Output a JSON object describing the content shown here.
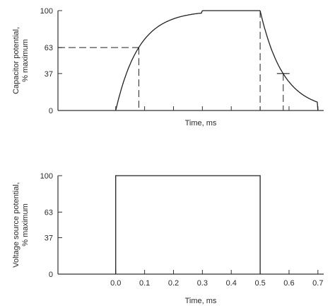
{
  "chart_data": [
    {
      "type": "line",
      "id": "capacitor-chart",
      "title": "",
      "xlabel": "Time, ms",
      "ylabel_lines": [
        "Capacitor potential,",
        "% maximum"
      ],
      "xlim": [
        -0.2,
        0.72
      ],
      "ylim": [
        0,
        100
      ],
      "yticks": [
        0,
        37,
        63,
        100
      ],
      "xticks": [
        0.0,
        0.1,
        0.2,
        0.3,
        0.4,
        0.5,
        0.6,
        0.7
      ],
      "show_x_tick_labels": false,
      "tau_ms": 0.08,
      "series": [
        {
          "kind": "charge",
          "x": [
            0.0,
            0.01,
            0.02,
            0.03,
            0.04,
            0.05,
            0.06,
            0.07,
            0.08,
            0.09,
            0.1,
            0.12,
            0.14,
            0.16,
            0.18,
            0.2,
            0.22,
            0.24,
            0.26,
            0.28,
            0.3
          ],
          "y": [
            0,
            11.8,
            22.1,
            31.3,
            39.3,
            46.5,
            52.8,
            58.3,
            63.2,
            67.5,
            71.3,
            77.7,
            82.6,
            86.5,
            89.5,
            91.8,
            93.6,
            95.0,
            96.1,
            97.0,
            100
          ]
        },
        {
          "kind": "plateau",
          "x": [
            0.3,
            0.5
          ],
          "y": [
            100,
            100
          ]
        },
        {
          "kind": "discharge",
          "x": [
            0.5,
            0.51,
            0.52,
            0.53,
            0.54,
            0.55,
            0.56,
            0.57,
            0.58,
            0.59,
            0.6,
            0.62,
            0.64,
            0.66,
            0.68,
            0.7
          ],
          "y": [
            100,
            88.2,
            77.9,
            68.7,
            60.7,
            53.5,
            47.2,
            41.7,
            36.8,
            32.5,
            28.7,
            22.3,
            17.4,
            13.5,
            10.5,
            0
          ]
        }
      ],
      "annotations": [
        {
          "type": "dashed-guide",
          "x": 0.08,
          "y": 63
        },
        {
          "type": "dashed-vertical",
          "x": 0.5,
          "y": 100
        },
        {
          "type": "dashed-guide-marker",
          "x": 0.58,
          "y": 37
        }
      ]
    },
    {
      "type": "line",
      "id": "voltage-source-chart",
      "title": "",
      "xlabel": "Time, ms",
      "ylabel_lines": [
        "Voltage source potential,",
        "% maximum"
      ],
      "xlim": [
        -0.2,
        0.72
      ],
      "ylim": [
        0,
        100
      ],
      "yticks": [
        0,
        37,
        63,
        100
      ],
      "xticks": [
        0.0,
        0.1,
        0.2,
        0.3,
        0.4,
        0.5,
        0.6,
        0.7
      ],
      "xtick_labels": [
        "0.0",
        "0.1",
        "0.2",
        "0.3",
        "0.4",
        "0.5",
        "0.6",
        "0.7"
      ],
      "show_x_tick_labels": true,
      "series": [
        {
          "kind": "square-pulse",
          "x": [
            0.0,
            0.0,
            0.5,
            0.5
          ],
          "y": [
            0,
            100,
            100,
            0
          ]
        }
      ]
    }
  ]
}
